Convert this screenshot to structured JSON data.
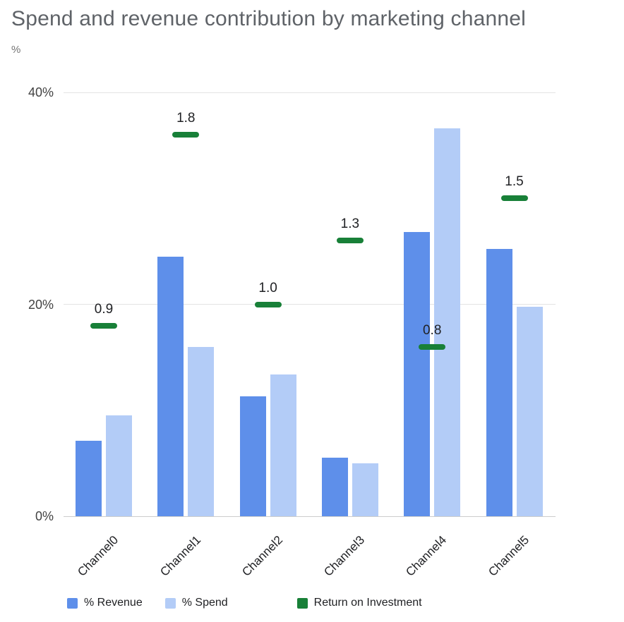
{
  "chart_data": {
    "type": "bar",
    "title": "Spend and revenue contribution by marketing channel",
    "y_unit_label": "%",
    "categories": [
      "Channel0",
      "Channel1",
      "Channel2",
      "Channel3",
      "Channel4",
      "Channel5"
    ],
    "series": [
      {
        "name": "% Revenue",
        "color": "#5e8fea",
        "values": [
          7.1,
          24.5,
          11.3,
          5.5,
          26.8,
          25.2
        ]
      },
      {
        "name": "% Spend",
        "color": "#b3ccf7",
        "values": [
          9.5,
          16.0,
          13.4,
          5.0,
          36.6,
          19.8
        ]
      }
    ],
    "roi_series": {
      "name": "Return on Investment",
      "color": "#188038",
      "labels": [
        "0.9",
        "1.8",
        "1.0",
        "1.3",
        "0.8",
        "1.5"
      ],
      "axis_scale": 20
    },
    "ylim": [
      0,
      40
    ],
    "yticks": [
      {
        "value": 0,
        "label": "0%"
      },
      {
        "value": 20,
        "label": "20%"
      },
      {
        "value": 40,
        "label": "40%"
      }
    ],
    "grid": true,
    "legend_position": "bottom"
  },
  "legend": {
    "items": [
      {
        "label": "% Revenue",
        "color": "#5e8fea"
      },
      {
        "label": "% Spend",
        "color": "#b3ccf7"
      },
      {
        "label": "Return on Investment",
        "color": "#188038"
      }
    ]
  }
}
